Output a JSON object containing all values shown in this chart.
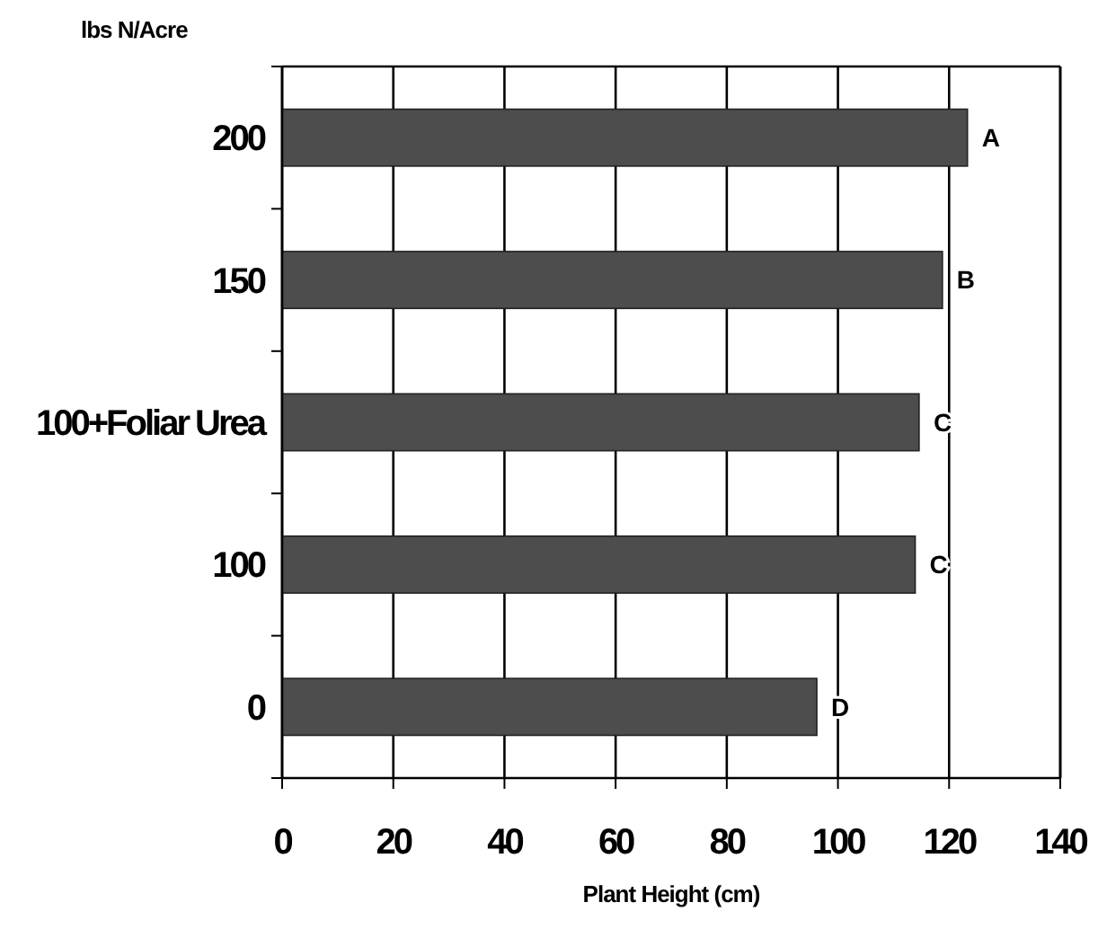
{
  "chart_data": {
    "type": "bar",
    "orientation": "horizontal",
    "ylabel": "lbs N/Acre",
    "xlabel": "Plant Height (cm)",
    "categories": [
      "200",
      "150",
      "100+Foliar Urea",
      "100",
      "0"
    ],
    "values": [
      123.3,
      118.8,
      114.6,
      113.9,
      96.2
    ],
    "color": "#4d4d4d",
    "xlim": [
      0,
      140
    ],
    "xticks": [
      0,
      20,
      40,
      60,
      80,
      100,
      120,
      140
    ],
    "grid": "x",
    "annotations": [
      {
        "text": "A",
        "x": 123.3,
        "y": "200"
      },
      {
        "text": "B",
        "x": 118.8,
        "y": "150"
      },
      {
        "text": "C",
        "x": 114.6,
        "y": "100+Foliar Urea"
      },
      {
        "text": "C",
        "x": 113.9,
        "y": "100"
      },
      {
        "text": "D",
        "x": 96.2,
        "y": "0"
      }
    ]
  }
}
